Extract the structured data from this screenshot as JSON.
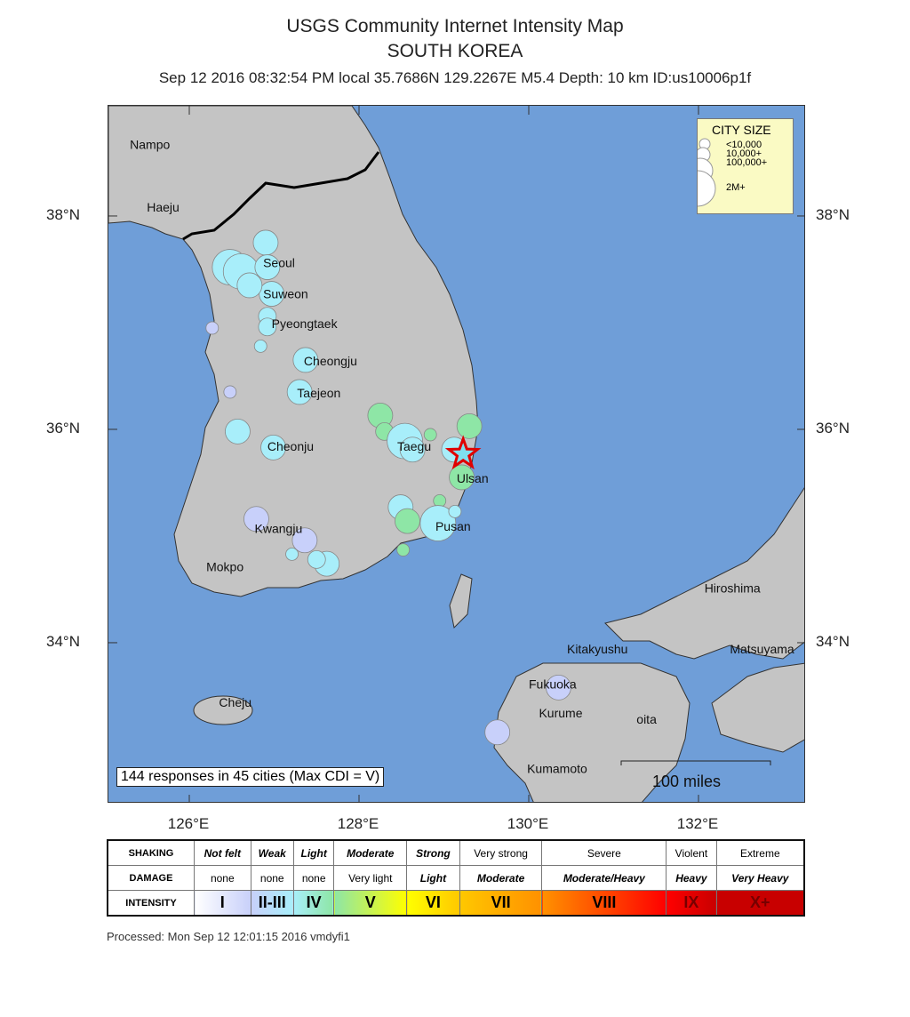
{
  "title": "USGS Community Internet Intensity Map",
  "region": "SOUTH KOREA",
  "event_line": "Sep 12 2016 08:32:54 PM local 35.7686N 129.2267E M5.4 Depth: 10 km ID:us10006p1f",
  "epicenter": {
    "lat": 35.7686,
    "lon": 129.2267
  },
  "lat_labels": [
    "38°N",
    "36°N",
    "34°N"
  ],
  "lat_values": [
    38,
    36,
    34
  ],
  "lon_labels": [
    "126°E",
    "128°E",
    "130°E",
    "132°E"
  ],
  "lon_values": [
    126,
    128,
    130,
    132
  ],
  "city_size_legend": {
    "title": "CITY SIZE",
    "items": [
      "<10,000",
      "10,000+",
      "100,000+",
      "2M+"
    ]
  },
  "responses_text": "144 responses in 45 cities (Max CDI = V)",
  "scale_label": "100 miles",
  "colors": {
    "ocean": "#6f9ed8",
    "land": "#c4c4c4",
    "I": "#ffffff",
    "II-III": "#c8d0fa",
    "IV": "#a8eefa",
    "V": "#8ee6a6",
    "VI": "#ffff00",
    "VII": "#ffc800",
    "VIII": "#ff9100",
    "IX": "#ff0000",
    "X+": "#c80000"
  },
  "city_labels": [
    {
      "name": "Nampo",
      "lat": 38.63,
      "lon": 125.3
    },
    {
      "name": "Haeju",
      "lat": 38.04,
      "lon": 125.5
    },
    {
      "name": "Seoul",
      "lat": 37.52,
      "lon": 126.87
    },
    {
      "name": "Suweon",
      "lat": 37.23,
      "lon": 126.87
    },
    {
      "name": "Pyeongtaek",
      "lat": 36.95,
      "lon": 126.97
    },
    {
      "name": "Cheongju",
      "lat": 36.6,
      "lon": 127.35
    },
    {
      "name": "Taejeon",
      "lat": 36.3,
      "lon": 127.27
    },
    {
      "name": "Cheonju",
      "lat": 35.8,
      "lon": 126.92
    },
    {
      "name": "Taegu",
      "lat": 35.8,
      "lon": 128.45
    },
    {
      "name": "Ulsan",
      "lat": 35.5,
      "lon": 129.15
    },
    {
      "name": "Pusan",
      "lat": 35.05,
      "lon": 128.9
    },
    {
      "name": "Kwangju",
      "lat": 35.03,
      "lon": 126.77
    },
    {
      "name": "Mokpo",
      "lat": 34.67,
      "lon": 126.2
    },
    {
      "name": "Cheju",
      "lat": 33.4,
      "lon": 126.35
    },
    {
      "name": "Kitakyushu",
      "lat": 33.9,
      "lon": 130.45
    },
    {
      "name": "Fukuoka",
      "lat": 33.57,
      "lon": 130.0
    },
    {
      "name": "Kurume",
      "lat": 33.3,
      "lon": 130.12
    },
    {
      "name": "oita",
      "lat": 33.24,
      "lon": 131.27
    },
    {
      "name": "Kumamoto",
      "lat": 32.78,
      "lon": 129.98
    },
    {
      "name": "Hiroshima",
      "lat": 34.47,
      "lon": 132.07
    },
    {
      "name": "Matsuyama",
      "lat": 33.9,
      "lon": 132.37
    }
  ],
  "cdi_cities": [
    {
      "lat": 37.52,
      "lon": 126.48,
      "cdi": "IV",
      "size": 3
    },
    {
      "lat": 37.48,
      "lon": 126.61,
      "cdi": "IV",
      "size": 3
    },
    {
      "lat": 37.75,
      "lon": 126.9,
      "cdi": "IV",
      "size": 2
    },
    {
      "lat": 37.52,
      "lon": 126.92,
      "cdi": "IV",
      "size": 2
    },
    {
      "lat": 37.27,
      "lon": 126.97,
      "cdi": "IV",
      "size": 2
    },
    {
      "lat": 37.35,
      "lon": 126.71,
      "cdi": "IV",
      "size": 2
    },
    {
      "lat": 37.06,
      "lon": 126.92,
      "cdi": "IV",
      "size": 1
    },
    {
      "lat": 36.96,
      "lon": 126.92,
      "cdi": "IV",
      "size": 1
    },
    {
      "lat": 36.78,
      "lon": 126.84,
      "cdi": "IV",
      "size": 0
    },
    {
      "lat": 36.95,
      "lon": 126.27,
      "cdi": "II-III",
      "size": 0
    },
    {
      "lat": 36.65,
      "lon": 127.37,
      "cdi": "IV",
      "size": 2
    },
    {
      "lat": 36.35,
      "lon": 127.3,
      "cdi": "IV",
      "size": 2
    },
    {
      "lat": 36.35,
      "lon": 126.48,
      "cdi": "II-III",
      "size": 0
    },
    {
      "lat": 35.98,
      "lon": 126.57,
      "cdi": "IV",
      "size": 2
    },
    {
      "lat": 35.83,
      "lon": 126.99,
      "cdi": "IV",
      "size": 2
    },
    {
      "lat": 36.13,
      "lon": 128.25,
      "cdi": "V",
      "size": 2
    },
    {
      "lat": 35.98,
      "lon": 128.3,
      "cdi": "V",
      "size": 1
    },
    {
      "lat": 35.89,
      "lon": 128.54,
      "cdi": "IV",
      "size": 3
    },
    {
      "lat": 35.81,
      "lon": 128.63,
      "cdi": "IV",
      "size": 2
    },
    {
      "lat": 35.95,
      "lon": 128.84,
      "cdi": "V",
      "size": 0
    },
    {
      "lat": 36.03,
      "lon": 129.3,
      "cdi": "V",
      "size": 2
    },
    {
      "lat": 35.81,
      "lon": 129.12,
      "cdi": "IV",
      "size": 2
    },
    {
      "lat": 35.55,
      "lon": 129.21,
      "cdi": "V",
      "size": 2
    },
    {
      "lat": 35.33,
      "lon": 128.95,
      "cdi": "V",
      "size": 0
    },
    {
      "lat": 35.27,
      "lon": 128.49,
      "cdi": "IV",
      "size": 2
    },
    {
      "lat": 35.14,
      "lon": 128.57,
      "cdi": "V",
      "size": 2
    },
    {
      "lat": 35.12,
      "lon": 128.93,
      "cdi": "IV",
      "size": 3
    },
    {
      "lat": 35.23,
      "lon": 129.13,
      "cdi": "IV",
      "size": 0
    },
    {
      "lat": 34.87,
      "lon": 128.52,
      "cdi": "V",
      "size": 0
    },
    {
      "lat": 35.16,
      "lon": 126.79,
      "cdi": "II-III",
      "size": 2
    },
    {
      "lat": 34.96,
      "lon": 127.36,
      "cdi": "II-III",
      "size": 2
    },
    {
      "lat": 34.83,
      "lon": 127.21,
      "cdi": "IV",
      "size": 0
    },
    {
      "lat": 34.74,
      "lon": 127.62,
      "cdi": "IV",
      "size": 2
    },
    {
      "lat": 34.78,
      "lon": 127.5,
      "cdi": "IV",
      "size": 1
    },
    {
      "lat": 33.58,
      "lon": 130.35,
      "cdi": "II-III",
      "size": 2
    },
    {
      "lat": 33.16,
      "lon": 129.63,
      "cdi": "II-III",
      "size": 2
    }
  ],
  "legend": {
    "row_labels": [
      "SHAKING",
      "DAMAGE",
      "INTENSITY"
    ],
    "shaking": [
      "Not felt",
      "Weak",
      "Light",
      "Moderate",
      "Strong",
      "Very strong",
      "Severe",
      "Violent",
      "Extreme"
    ],
    "damage": [
      "none",
      "none",
      "none",
      "Very light",
      "Light",
      "Moderate",
      "Moderate/Heavy",
      "Heavy",
      "Very Heavy"
    ],
    "intensity": [
      "I",
      "II-III",
      "IV",
      "V",
      "VI",
      "VII",
      "VIII",
      "IX",
      "X+"
    ]
  },
  "processed": "Processed: Mon Sep 12 12:01:15 2016 vmdyfi1"
}
